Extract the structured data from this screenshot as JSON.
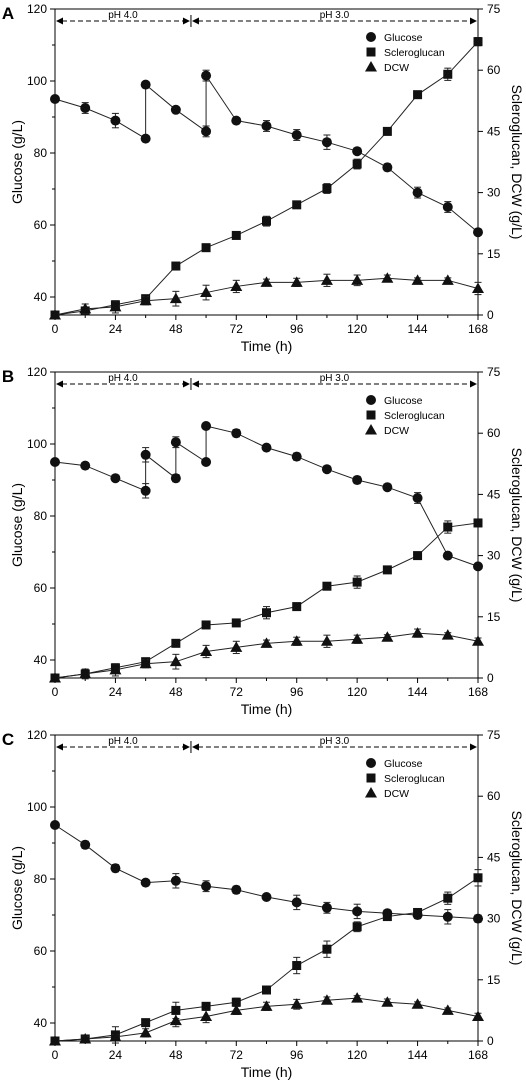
{
  "chart_data": [
    {
      "panel_letter": "A",
      "type": "line",
      "xlabel": "Time (h)",
      "ylabel_left": "Glucose (g/L)",
      "ylabel_right": "Scleroglucan, DCW (g/L)",
      "xlim": [
        0,
        168
      ],
      "ylim_left": [
        35,
        120
      ],
      "ylim_right": [
        0,
        75
      ],
      "xticks": [
        0,
        24,
        48,
        72,
        96,
        120,
        144,
        168
      ],
      "yticks_left": [
        40,
        60,
        80,
        100,
        120
      ],
      "yticks_right": [
        0,
        15,
        30,
        45,
        60,
        75
      ],
      "ph_phases": [
        {
          "label": "pH 4.0",
          "x_start": 0,
          "x_end": 54
        },
        {
          "label": "pH 3.0",
          "x_start": 54,
          "x_end": 168
        }
      ],
      "legend_position": "top-right",
      "series": [
        {
          "name": "Glucose",
          "axis": "left",
          "marker": "circle",
          "x": [
            0,
            12,
            24,
            36,
            36,
            48,
            60,
            60,
            72,
            84,
            96,
            108,
            120,
            132,
            144,
            156,
            168
          ],
          "y": [
            95,
            92.5,
            89,
            84,
            99,
            92,
            86,
            101.5,
            89,
            87.5,
            85,
            83,
            80.5,
            76,
            69,
            65,
            58
          ],
          "err": [
            0,
            1.5,
            2,
            0,
            0,
            0,
            1.5,
            1.5,
            0,
            1.5,
            1.5,
            2,
            0,
            1,
            1.5,
            1.5,
            0
          ],
          "connect": [
            [
              0,
              1,
              2,
              3
            ],
            [
              4,
              5,
              6
            ],
            [
              7,
              8,
              9,
              10,
              11,
              12,
              13,
              14,
              15,
              16
            ]
          ],
          "jumps": [
            [
              3,
              4
            ],
            [
              6,
              7
            ]
          ]
        },
        {
          "name": "Scleroglucan",
          "axis": "right",
          "marker": "square",
          "x": [
            0,
            12,
            24,
            36,
            48,
            60,
            72,
            84,
            96,
            108,
            120,
            132,
            144,
            156,
            168
          ],
          "y": [
            0,
            1,
            2.5,
            4,
            12,
            16.5,
            19.5,
            23,
            27,
            31,
            37,
            45,
            54,
            59,
            67
          ],
          "err": [
            0,
            0.6,
            0.8,
            0.8,
            0.8,
            0.6,
            0.6,
            1.2,
            0.8,
            1.2,
            1.2,
            0.8,
            0.6,
            1.5,
            1
          ]
        },
        {
          "name": "DCW",
          "axis": "right",
          "marker": "triangle",
          "x": [
            0,
            12,
            24,
            36,
            48,
            60,
            72,
            84,
            96,
            108,
            120,
            132,
            144,
            156,
            168
          ],
          "y": [
            0,
            1.5,
            2,
            3.5,
            4,
            5.5,
            7,
            8,
            8,
            8.5,
            8.5,
            9,
            8.5,
            8.5,
            6.5
          ],
          "err": [
            0,
            1.2,
            1.5,
            1,
            1.8,
            1.8,
            1.5,
            0.8,
            1,
            1.5,
            1.3,
            0.8,
            0.6,
            0.6,
            1.5
          ]
        }
      ]
    },
    {
      "panel_letter": "B",
      "type": "line",
      "xlabel": "Time (h)",
      "ylabel_left": "Glucose (g/L)",
      "ylabel_right": "Scleroglucan, DCW (g/L)",
      "xlim": [
        0,
        168
      ],
      "ylim_left": [
        35,
        120
      ],
      "ylim_right": [
        0,
        75
      ],
      "xticks": [
        0,
        24,
        48,
        72,
        96,
        120,
        144,
        168
      ],
      "yticks_left": [
        40,
        60,
        80,
        100,
        120
      ],
      "yticks_right": [
        0,
        15,
        30,
        45,
        60,
        75
      ],
      "ph_phases": [
        {
          "label": "pH 4.0",
          "x_start": 0,
          "x_end": 54
        },
        {
          "label": "pH 3.0",
          "x_start": 54,
          "x_end": 168
        }
      ],
      "legend_position": "top-right",
      "series": [
        {
          "name": "Glucose",
          "axis": "left",
          "marker": "circle",
          "x": [
            0,
            12,
            24,
            36,
            36,
            48,
            48,
            60,
            60,
            72,
            84,
            96,
            108,
            120,
            132,
            144,
            156,
            168
          ],
          "y": [
            95,
            94,
            90.5,
            87,
            97,
            90.5,
            100.5,
            95,
            105,
            103,
            99,
            96.5,
            93,
            90,
            88,
            85,
            69,
            66
          ],
          "err": [
            0,
            0,
            0,
            2,
            2,
            1,
            1.5,
            0,
            0,
            1,
            0,
            1,
            0,
            1,
            0,
            1.5,
            0,
            0
          ],
          "connect": [
            [
              0,
              1,
              2,
              3
            ],
            [
              4,
              5
            ],
            [
              6,
              7
            ],
            [
              8,
              9,
              10,
              11,
              12,
              13,
              14,
              15,
              16,
              17
            ]
          ],
          "jumps": [
            [
              3,
              4
            ],
            [
              5,
              6
            ],
            [
              7,
              8
            ]
          ]
        },
        {
          "name": "Scleroglucan",
          "axis": "right",
          "marker": "square",
          "x": [
            0,
            12,
            24,
            36,
            48,
            60,
            72,
            84,
            96,
            108,
            120,
            132,
            144,
            156,
            168
          ],
          "y": [
            0,
            1,
            2.5,
            4,
            8.5,
            13,
            13.5,
            16,
            17.5,
            22.5,
            23.5,
            26.5,
            30,
            37,
            38
          ],
          "err": [
            0,
            0.6,
            0.8,
            0.8,
            0.8,
            0.6,
            0.6,
            1.5,
            0.8,
            0.6,
            1.5,
            0.8,
            0.8,
            1.5,
            0.6
          ]
        },
        {
          "name": "DCW",
          "axis": "right",
          "marker": "triangle",
          "x": [
            0,
            12,
            24,
            36,
            48,
            60,
            72,
            84,
            96,
            108,
            120,
            132,
            144,
            156,
            168
          ],
          "y": [
            0,
            1,
            2,
            3.5,
            4,
            6.5,
            7.5,
            8.5,
            9,
            9,
            9.5,
            10,
            11,
            10.5,
            9
          ],
          "err": [
            0,
            1.2,
            1.5,
            1,
            1.8,
            1.5,
            1.5,
            0.8,
            1,
            1.5,
            1,
            0.6,
            1,
            0.6,
            0.8
          ]
        }
      ]
    },
    {
      "panel_letter": "C",
      "type": "line",
      "xlabel": "Time (h)",
      "ylabel_left": "Glucose (g/L)",
      "ylabel_right": "Scleroglucan, DCW (g/L)",
      "xlim": [
        0,
        168
      ],
      "ylim_left": [
        35,
        120
      ],
      "ylim_right": [
        0,
        75
      ],
      "xticks": [
        0,
        24,
        48,
        72,
        96,
        120,
        144,
        168
      ],
      "yticks_left": [
        40,
        60,
        80,
        100,
        120
      ],
      "yticks_right": [
        0,
        15,
        30,
        45,
        60,
        75
      ],
      "ph_phases": [
        {
          "label": "pH 4.0",
          "x_start": 0,
          "x_end": 54
        },
        {
          "label": "pH 3.0",
          "x_start": 54,
          "x_end": 168
        }
      ],
      "legend_position": "top-right",
      "series": [
        {
          "name": "Glucose",
          "axis": "left",
          "marker": "circle",
          "x": [
            0,
            12,
            24,
            36,
            48,
            60,
            72,
            84,
            96,
            108,
            120,
            132,
            144,
            156,
            168
          ],
          "y": [
            95,
            89.5,
            83,
            79,
            79.5,
            78,
            77,
            75,
            73.5,
            72,
            71,
            70.5,
            70,
            69.5,
            69
          ],
          "err": [
            0,
            1,
            1,
            0,
            2,
            1.5,
            1,
            0,
            2,
            1.5,
            2,
            0,
            1,
            2,
            1
          ]
        },
        {
          "name": "Scleroglucan",
          "axis": "right",
          "marker": "square",
          "x": [
            0,
            12,
            24,
            36,
            48,
            60,
            72,
            84,
            96,
            108,
            120,
            132,
            144,
            156,
            168
          ],
          "y": [
            0,
            0.5,
            1.5,
            4.5,
            7.5,
            8.5,
            9.5,
            12.5,
            18.5,
            22.5,
            28,
            30.5,
            31.5,
            35,
            40
          ],
          "err": [
            0,
            0.6,
            2,
            0.8,
            2,
            0.6,
            1,
            0.6,
            2,
            2,
            1.2,
            0.6,
            0.6,
            1.5,
            2
          ]
        },
        {
          "name": "DCW",
          "axis": "right",
          "marker": "triangle",
          "x": [
            0,
            12,
            24,
            36,
            48,
            60,
            72,
            84,
            96,
            108,
            120,
            132,
            144,
            156,
            168
          ],
          "y": [
            0,
            0.5,
            1,
            2,
            5,
            6,
            7.5,
            8.5,
            9,
            10,
            10.5,
            9.5,
            9,
            7.5,
            6
          ],
          "err": [
            0,
            0.6,
            0.6,
            1,
            1.5,
            1.5,
            1,
            1,
            1.2,
            0.8,
            0.6,
            0.8,
            0.6,
            0.6,
            0.8
          ]
        }
      ]
    }
  ]
}
